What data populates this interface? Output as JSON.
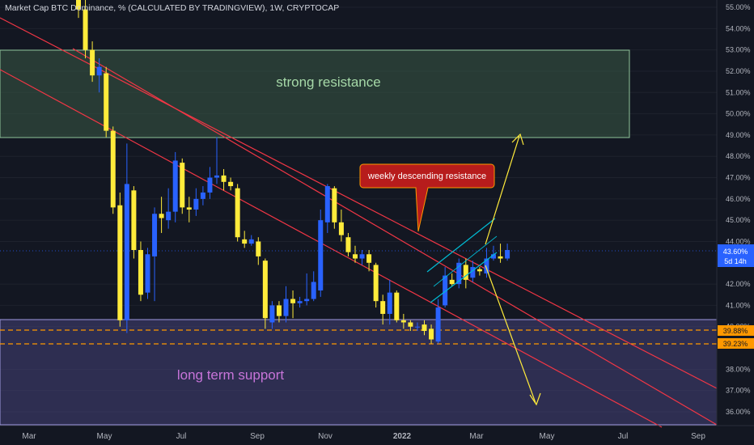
{
  "header": {
    "title": "Market Cap BTC Dominance, % (CALCULATED BY TRADINGVIEW), 1W, CRYPTOCAP"
  },
  "price_tag": {
    "value": "43.60%",
    "countdown": "5d 14h"
  },
  "level_tags": [
    "39.88%",
    "39.23%"
  ],
  "zones": {
    "resistance_label": "strong resistance",
    "support_label": "long term support"
  },
  "callout": {
    "text": "weekly descending resistance"
  },
  "colors": {
    "background": "#131722",
    "bull": "#2962ff",
    "bear": "#ffeb3b",
    "trendline": "#f23645",
    "channel": "#00bcd4",
    "arrows": "#ffeb3b",
    "callout_bg": "#b71c1c",
    "level_lines": "#ff9800"
  },
  "chart_data": {
    "type": "candlestick",
    "y_axis": {
      "scale": "percent",
      "ticks": [
        "55.00%",
        "54.00%",
        "53.00%",
        "52.00%",
        "51.00%",
        "50.00%",
        "49.00%",
        "48.00%",
        "47.00%",
        "46.00%",
        "45.00%",
        "44.00%",
        "43.60%",
        "42.00%",
        "41.00%",
        "40.00%",
        "39.88%",
        "39.23%",
        "38.00%",
        "37.00%",
        "36.00%"
      ],
      "range": [
        35.5,
        55.3
      ]
    },
    "x_axis": {
      "labels": [
        "Mar",
        "May",
        "Jul",
        "Sep",
        "Nov",
        "2022",
        "Mar",
        "May",
        "Jul",
        "Sep"
      ]
    },
    "candles": [
      {
        "o": 56.5,
        "h": 57.5,
        "l": 54.5,
        "c": 54.9
      },
      {
        "o": 54.9,
        "h": 55.6,
        "l": 52.6,
        "c": 53.0
      },
      {
        "o": 53.0,
        "h": 53.4,
        "l": 51.5,
        "c": 51.8
      },
      {
        "o": 51.8,
        "h": 52.6,
        "l": 51.0,
        "c": 52.2
      },
      {
        "o": 51.9,
        "h": 52.2,
        "l": 48.9,
        "c": 49.2
      },
      {
        "o": 49.2,
        "h": 49.4,
        "l": 45.3,
        "c": 45.6
      },
      {
        "o": 45.7,
        "h": 46.3,
        "l": 40.0,
        "c": 40.3
      },
      {
        "o": 40.3,
        "h": 48.6,
        "l": 39.7,
        "c": 46.7
      },
      {
        "o": 46.4,
        "h": 46.6,
        "l": 43.2,
        "c": 43.6
      },
      {
        "o": 43.6,
        "h": 44.0,
        "l": 41.2,
        "c": 41.5
      },
      {
        "o": 41.6,
        "h": 43.7,
        "l": 41.3,
        "c": 43.4
      },
      {
        "o": 43.3,
        "h": 45.6,
        "l": 41.2,
        "c": 45.3
      },
      {
        "o": 45.3,
        "h": 46.1,
        "l": 44.4,
        "c": 45.1
      },
      {
        "o": 45.0,
        "h": 46.5,
        "l": 44.6,
        "c": 45.4
      },
      {
        "o": 45.4,
        "h": 48.2,
        "l": 44.9,
        "c": 47.8
      },
      {
        "o": 47.7,
        "h": 47.9,
        "l": 45.3,
        "c": 45.6
      },
      {
        "o": 45.6,
        "h": 46.1,
        "l": 44.9,
        "c": 45.5
      },
      {
        "o": 45.5,
        "h": 46.5,
        "l": 45.2,
        "c": 46.0
      },
      {
        "o": 46.0,
        "h": 46.6,
        "l": 45.7,
        "c": 46.3
      },
      {
        "o": 46.3,
        "h": 47.5,
        "l": 46.0,
        "c": 47.0
      },
      {
        "o": 47.0,
        "h": 48.9,
        "l": 46.7,
        "c": 47.1
      },
      {
        "o": 47.1,
        "h": 47.4,
        "l": 46.4,
        "c": 46.8
      },
      {
        "o": 46.8,
        "h": 47.0,
        "l": 46.4,
        "c": 46.6
      },
      {
        "o": 46.5,
        "h": 46.7,
        "l": 44.0,
        "c": 44.2
      },
      {
        "o": 44.1,
        "h": 44.5,
        "l": 43.7,
        "c": 43.9
      },
      {
        "o": 43.9,
        "h": 44.3,
        "l": 43.8,
        "c": 44.1
      },
      {
        "o": 44.0,
        "h": 44.2,
        "l": 42.9,
        "c": 43.3
      },
      {
        "o": 43.1,
        "h": 43.2,
        "l": 39.9,
        "c": 40.4
      },
      {
        "o": 40.2,
        "h": 41.2,
        "l": 39.9,
        "c": 41.0
      },
      {
        "o": 41.0,
        "h": 41.2,
        "l": 40.2,
        "c": 40.5
      },
      {
        "o": 40.5,
        "h": 41.9,
        "l": 40.2,
        "c": 41.3
      },
      {
        "o": 41.3,
        "h": 41.7,
        "l": 40.4,
        "c": 41.1
      },
      {
        "o": 41.1,
        "h": 41.4,
        "l": 40.9,
        "c": 41.2
      },
      {
        "o": 41.2,
        "h": 42.5,
        "l": 41.0,
        "c": 41.3
      },
      {
        "o": 41.3,
        "h": 42.6,
        "l": 41.2,
        "c": 42.1
      },
      {
        "o": 41.7,
        "h": 45.5,
        "l": 41.4,
        "c": 45.0
      },
      {
        "o": 44.9,
        "h": 46.7,
        "l": 44.4,
        "c": 46.6
      },
      {
        "o": 46.5,
        "h": 46.6,
        "l": 44.6,
        "c": 44.9
      },
      {
        "o": 44.9,
        "h": 45.5,
        "l": 44.0,
        "c": 44.3
      },
      {
        "o": 44.2,
        "h": 44.4,
        "l": 43.3,
        "c": 43.5
      },
      {
        "o": 43.4,
        "h": 43.8,
        "l": 43.0,
        "c": 43.2
      },
      {
        "o": 43.2,
        "h": 43.6,
        "l": 42.9,
        "c": 43.4
      },
      {
        "o": 43.4,
        "h": 43.6,
        "l": 42.6,
        "c": 43.0
      },
      {
        "o": 42.9,
        "h": 43.0,
        "l": 40.9,
        "c": 41.2
      },
      {
        "o": 41.2,
        "h": 41.5,
        "l": 40.1,
        "c": 40.6
      },
      {
        "o": 40.6,
        "h": 42.2,
        "l": 40.1,
        "c": 41.6
      },
      {
        "o": 41.6,
        "h": 41.7,
        "l": 40.2,
        "c": 40.3
      },
      {
        "o": 40.3,
        "h": 40.6,
        "l": 39.9,
        "c": 40.2
      },
      {
        "o": 40.2,
        "h": 40.3,
        "l": 39.8,
        "c": 40.0
      },
      {
        "o": 40.0,
        "h": 40.2,
        "l": 39.8,
        "c": 40.0
      },
      {
        "o": 40.1,
        "h": 40.3,
        "l": 39.6,
        "c": 39.8
      },
      {
        "o": 39.9,
        "h": 40.1,
        "l": 39.2,
        "c": 39.4
      },
      {
        "o": 39.3,
        "h": 41.3,
        "l": 39.2,
        "c": 40.9
      },
      {
        "o": 41.0,
        "h": 42.8,
        "l": 40.9,
        "c": 42.4
      },
      {
        "o": 42.2,
        "h": 42.5,
        "l": 41.9,
        "c": 42.0
      },
      {
        "o": 42.0,
        "h": 43.2,
        "l": 41.8,
        "c": 43.0
      },
      {
        "o": 42.9,
        "h": 43.2,
        "l": 41.8,
        "c": 42.2
      },
      {
        "o": 42.3,
        "h": 43.1,
        "l": 42.1,
        "c": 42.8
      },
      {
        "o": 42.7,
        "h": 42.8,
        "l": 42.4,
        "c": 42.6
      },
      {
        "o": 42.5,
        "h": 43.7,
        "l": 42.3,
        "c": 43.2
      },
      {
        "o": 43.2,
        "h": 43.8,
        "l": 43.1,
        "c": 43.4
      },
      {
        "o": 43.3,
        "h": 43.9,
        "l": 43.0,
        "c": 43.2
      },
      {
        "o": 43.2,
        "h": 43.9,
        "l": 43.1,
        "c": 43.6
      }
    ],
    "resistance_zone": [
      49.0,
      53.1
    ],
    "support_zone": [
      36.2,
      40.2
    ],
    "levels": [
      39.88,
      39.23
    ]
  }
}
